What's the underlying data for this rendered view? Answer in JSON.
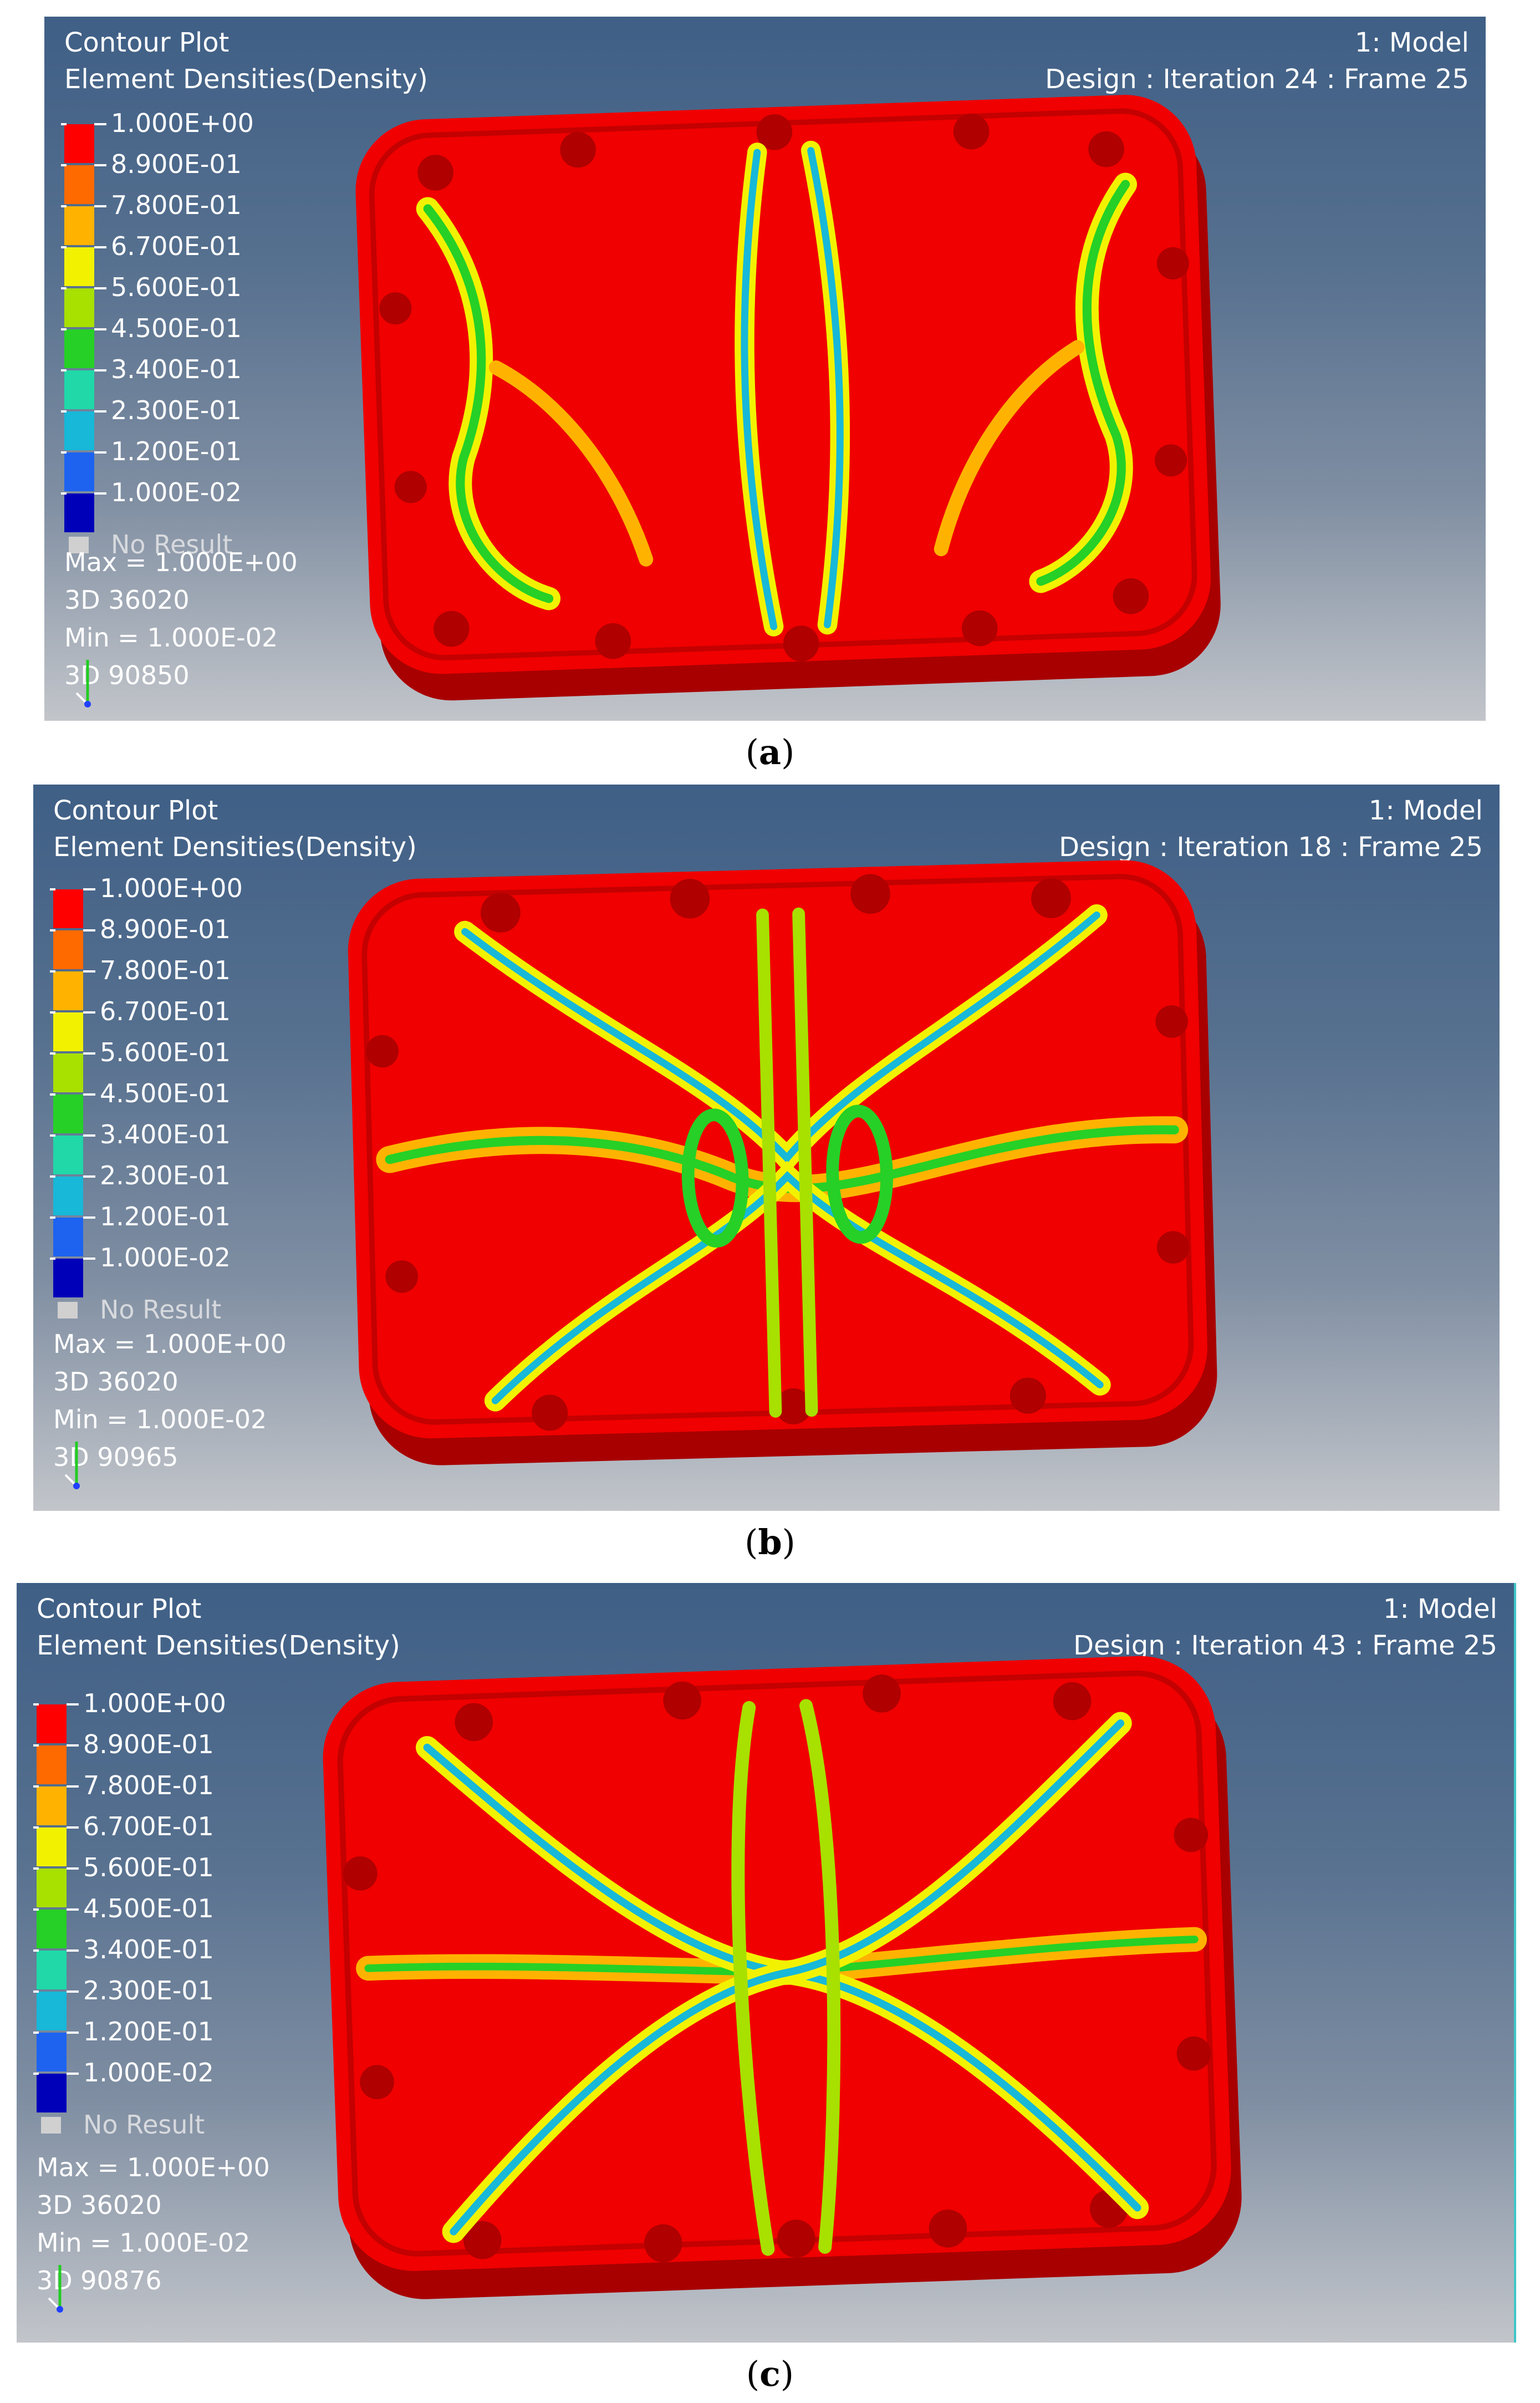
{
  "panels": [
    {
      "title": "Contour Plot",
      "subtitle": "Element Densities(Density)",
      "model": "1: Model",
      "design": "Design : Iteration 24 : Frame 25",
      "max_line": "Max = 1.000E+00",
      "max_id": "3D 36020",
      "min_line": "Min = 1.000E-02",
      "min_id": "3D 90850",
      "caption": "a"
    },
    {
      "title": "Contour Plot",
      "subtitle": "Element Densities(Density)",
      "model": "1: Model",
      "design": "Design : Iteration 18 : Frame 25",
      "max_line": "Max = 1.000E+00",
      "max_id": "3D 36020",
      "min_line": "Min = 1.000E-02",
      "min_id": "3D 90965",
      "caption": "b"
    },
    {
      "title": "Contour Plot",
      "subtitle": "Element Densities(Density)",
      "model": "1: Model",
      "design": "Design : Iteration 43 : Frame 25",
      "max_line": "Max = 1.000E+00",
      "max_id": "3D 36020",
      "min_line": "Min = 1.000E-02",
      "min_id": "3D 90876",
      "caption": "c"
    }
  ],
  "legend": {
    "labels": [
      "1.000E+00",
      "8.900E-01",
      "7.800E-01",
      "6.700E-01",
      "5.600E-01",
      "4.500E-01",
      "3.400E-01",
      "2.300E-01",
      "1.200E-01",
      "1.000E-02"
    ],
    "colors": [
      "#ff0000",
      "#ff6a00",
      "#ffb300",
      "#f2f200",
      "#a8e000",
      "#26d026",
      "#20d8a8",
      "#17b8d8",
      "#1d63f0",
      "#0000b8"
    ],
    "no_result": "No Result",
    "no_result_color": "#d0d0d0"
  },
  "colors": {
    "part_red": "#f00000",
    "part_shadow": "#a80000",
    "bg_top": "#3f5f86",
    "bg_bottom": "#c2c5ca",
    "caption_paren_left": "(",
    "caption_paren_right": ")"
  }
}
